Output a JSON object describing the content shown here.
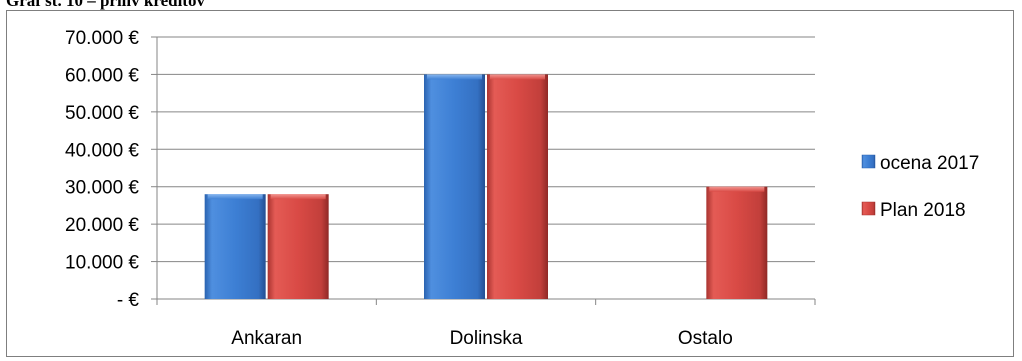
{
  "caption": "Graf št. 10 – priliv kreditov",
  "chart_data": {
    "type": "bar",
    "categories": [
      "Ankaran",
      "Dolinska",
      "Ostalo"
    ],
    "series": [
      {
        "name": "ocena 2017",
        "values": [
          28000,
          60000,
          null
        ],
        "color": "#3d7fd4"
      },
      {
        "name": "Plan 2018",
        "values": [
          28000,
          60000,
          30000
        ],
        "color": "#d94a45"
      }
    ],
    "ylim": [
      0,
      70000
    ],
    "yticks": [
      0,
      10000,
      20000,
      30000,
      40000,
      50000,
      60000,
      70000
    ],
    "ytick_labels": [
      "-  €",
      "10.000 €",
      "20.000 €",
      "30.000 €",
      "40.000 €",
      "50.000 €",
      "60.000 €",
      "70.000 €"
    ],
    "grid": true,
    "legend_position": "right",
    "title": "",
    "xlabel": "",
    "ylabel": ""
  }
}
